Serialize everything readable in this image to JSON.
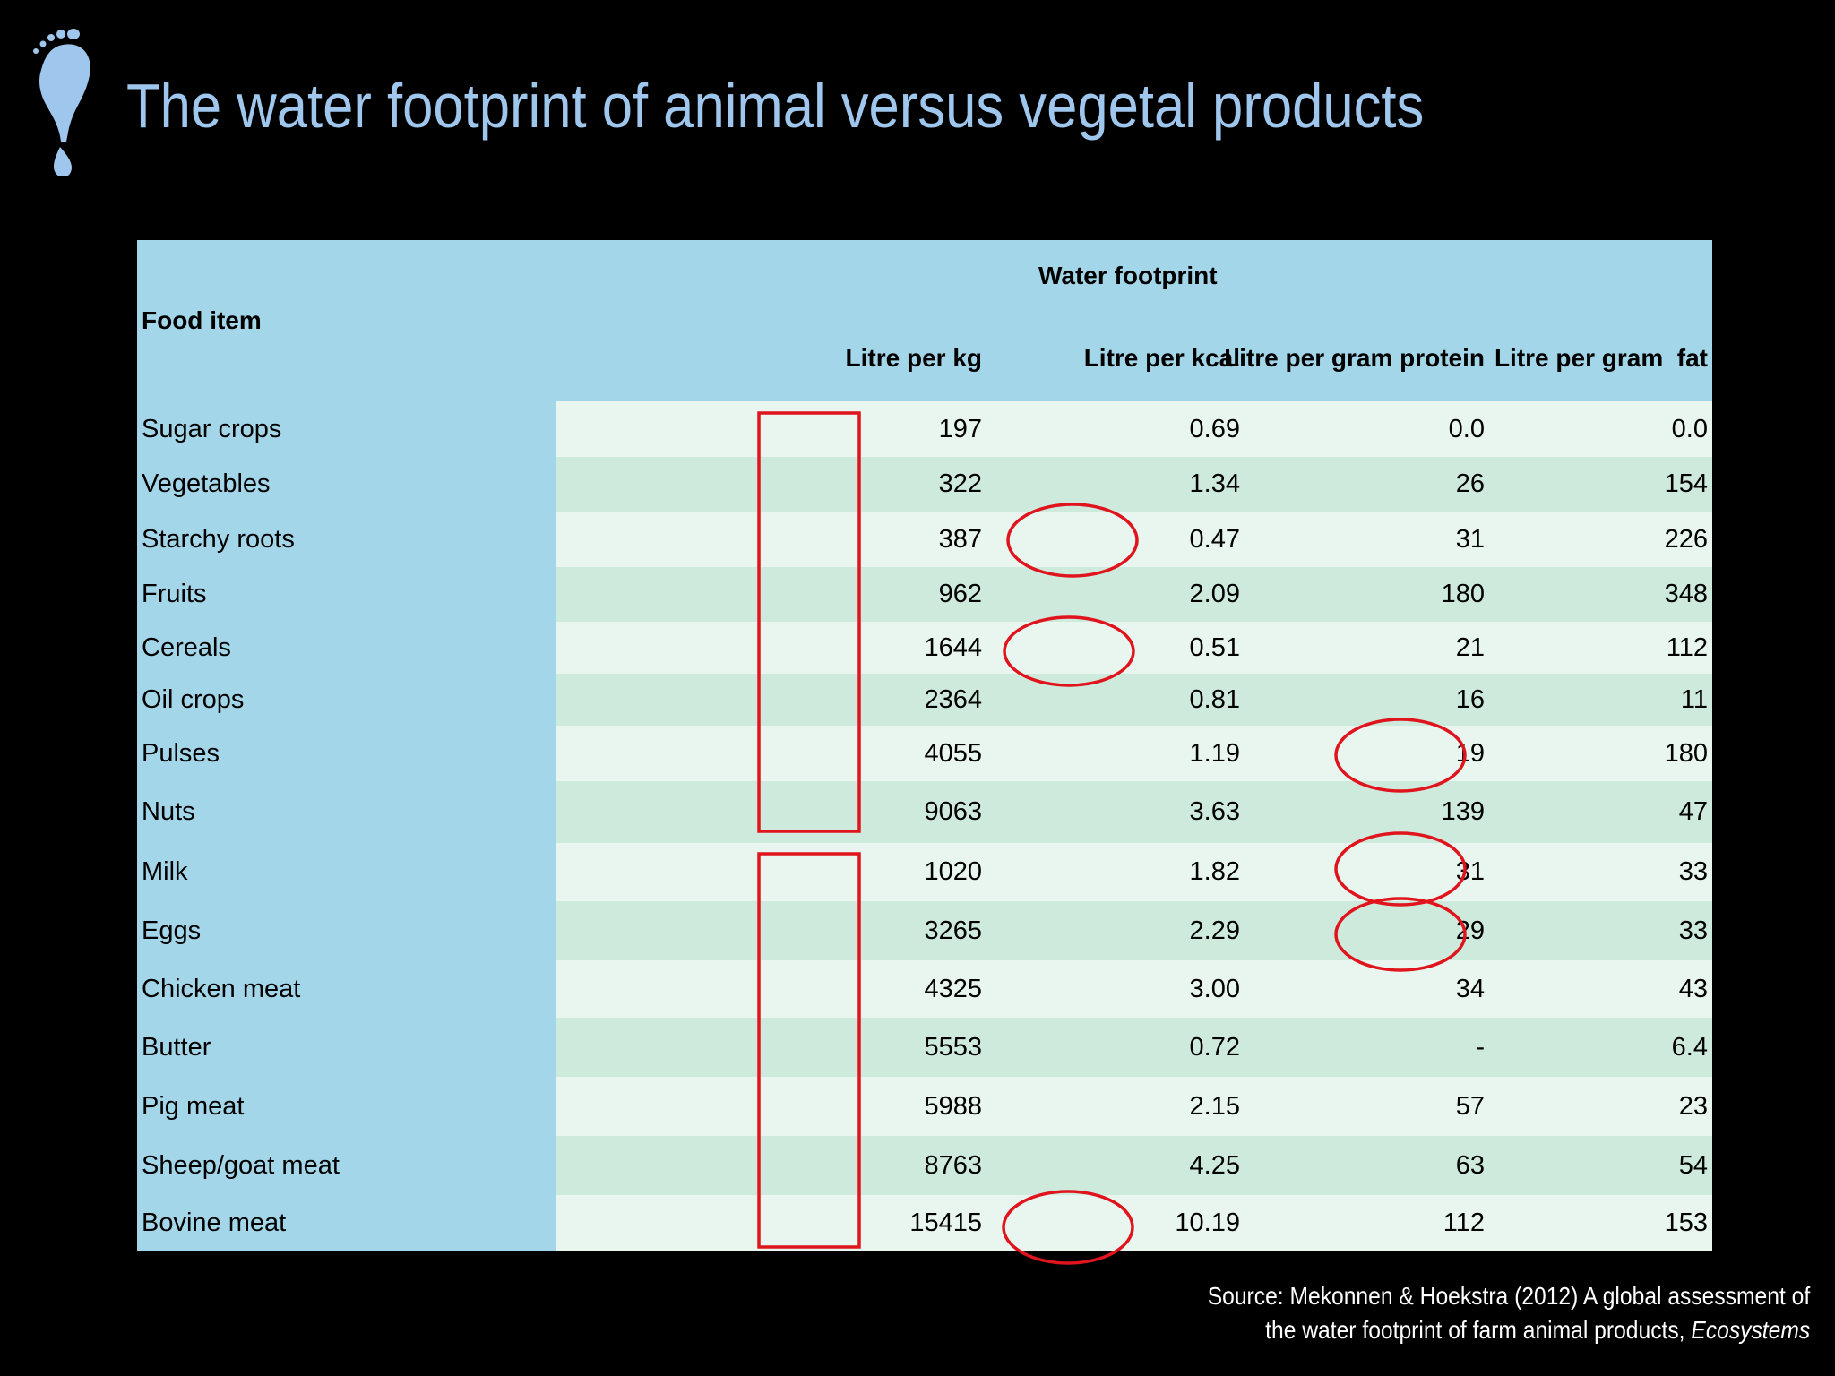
{
  "title": "The water footprint of animal versus vegetal products",
  "table": {
    "food_item_header": "Food item",
    "group_header": "Water footprint",
    "columns": [
      "Litre per kg",
      "Litre per kcal",
      "Litre per gram protein",
      "Litre per gram  fat"
    ],
    "rows": [
      {
        "name": "Sugar crops",
        "values": [
          "197",
          "0.69",
          "0.0",
          "0.0"
        ]
      },
      {
        "name": "Vegetables",
        "values": [
          "322",
          "1.34",
          "26",
          "154"
        ]
      },
      {
        "name": "Starchy roots",
        "values": [
          "387",
          "0.47",
          "31",
          "226"
        ]
      },
      {
        "name": "Fruits",
        "values": [
          "962",
          "2.09",
          "180",
          "348"
        ]
      },
      {
        "name": "Cereals",
        "values": [
          "1644",
          "0.51",
          "21",
          "112"
        ]
      },
      {
        "name": "Oil crops",
        "values": [
          "2364",
          "0.81",
          "16",
          "11"
        ]
      },
      {
        "name": "Pulses",
        "values": [
          "4055",
          "1.19",
          "19",
          "180"
        ]
      },
      {
        "name": "Nuts",
        "values": [
          "9063",
          "3.63",
          "139",
          "47"
        ]
      },
      {
        "name": "Milk",
        "values": [
          "1020",
          "1.82",
          "31",
          "33"
        ]
      },
      {
        "name": "Eggs",
        "values": [
          "3265",
          "2.29",
          "29",
          "33"
        ]
      },
      {
        "name": "Chicken meat",
        "values": [
          "4325",
          "3.00",
          "34",
          "43"
        ]
      },
      {
        "name": "Butter",
        "values": [
          "5553",
          "0.72",
          "-",
          "6.4"
        ]
      },
      {
        "name": "Pig meat",
        "values": [
          "5988",
          "2.15",
          "57",
          "23"
        ]
      },
      {
        "name": "Sheep/goat meat",
        "values": [
          "8763",
          "4.25",
          "63",
          "54"
        ]
      },
      {
        "name": "Bovine meat",
        "values": [
          "15415",
          "10.19",
          "112",
          "153"
        ]
      }
    ]
  },
  "source_line1": "Source: Mekonnen & Hoekstra (2012) A global assessment of",
  "source_line2_prefix": "the water footprint of farm animal products, ",
  "source_line2_italic": "Ecosystems",
  "colors": {
    "background": "#000000",
    "title": "#9fc6ec",
    "header_bg": "#a4d6e9",
    "row_light": "#e8f6ef",
    "row_dark": "#cdeadd",
    "highlight": "#e0141c",
    "logo": "#9fc6ec"
  }
}
